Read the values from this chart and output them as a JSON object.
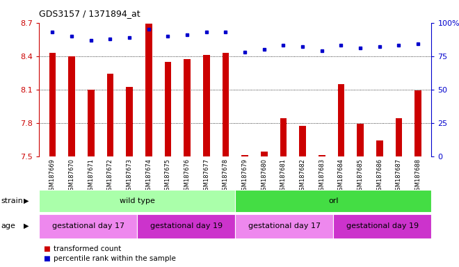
{
  "title": "GDS3157 / 1371894_at",
  "samples": [
    "GSM187669",
    "GSM187670",
    "GSM187671",
    "GSM187672",
    "GSM187673",
    "GSM187674",
    "GSM187675",
    "GSM187676",
    "GSM187677",
    "GSM187678",
    "GSM187679",
    "GSM187680",
    "GSM187681",
    "GSM187682",
    "GSM187683",
    "GSM187684",
    "GSM187685",
    "GSM187686",
    "GSM187687",
    "GSM187688"
  ],
  "bar_values": [
    8.43,
    8.4,
    8.1,
    8.24,
    8.12,
    8.69,
    8.35,
    8.37,
    8.41,
    8.43,
    7.51,
    7.54,
    7.84,
    7.77,
    7.51,
    8.15,
    7.79,
    7.64,
    7.84,
    8.09
  ],
  "dot_values": [
    93,
    90,
    87,
    88,
    89,
    95,
    90,
    91,
    93,
    93,
    78,
    80,
    83,
    82,
    79,
    83,
    81,
    82,
    83,
    84
  ],
  "ylim_left": [
    7.5,
    8.7
  ],
  "ylim_right": [
    0,
    100
  ],
  "yticks_left": [
    7.5,
    7.8,
    8.1,
    8.4,
    8.7
  ],
  "yticks_right": [
    0,
    25,
    50,
    75,
    100
  ],
  "ytick_labels_right": [
    "0",
    "25",
    "50",
    "75",
    "100%"
  ],
  "hlines": [
    7.8,
    8.1,
    8.4
  ],
  "bar_color": "#cc0000",
  "dot_color": "#0000cc",
  "strain_groups": [
    {
      "label": "wild type",
      "start": 0,
      "end": 9,
      "color": "#aaffaa"
    },
    {
      "label": "orl",
      "start": 10,
      "end": 19,
      "color": "#44dd44"
    }
  ],
  "age_groups": [
    {
      "label": "gestational day 17",
      "start": 0,
      "end": 4,
      "color": "#ee88ee"
    },
    {
      "label": "gestational day 19",
      "start": 5,
      "end": 9,
      "color": "#cc33cc"
    },
    {
      "label": "gestational day 17",
      "start": 10,
      "end": 14,
      "color": "#ee88ee"
    },
    {
      "label": "gestational day 19",
      "start": 15,
      "end": 19,
      "color": "#cc33cc"
    }
  ],
  "legend_items": [
    {
      "label": "transformed count",
      "color": "#cc0000"
    },
    {
      "label": "percentile rank within the sample",
      "color": "#0000cc"
    }
  ],
  "strain_label": "strain",
  "age_label": "age",
  "xticklabel_bg": "#bbbbbb"
}
